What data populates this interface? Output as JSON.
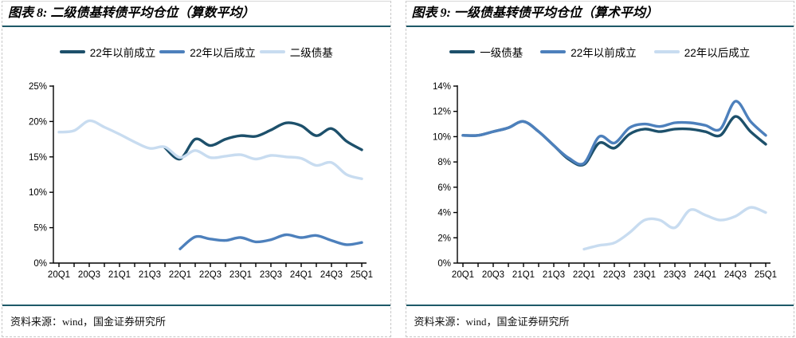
{
  "colors": {
    "separator": "#1E5968",
    "panel_border": "#c7c7c7",
    "axis": "#000000",
    "series_dark": "#1D506B",
    "series_medium": "#4D80BC",
    "series_light": "#C8DCF0"
  },
  "panels": [
    {
      "source": "资料来源：wind，国金证券研究所"
    },
    {
      "source": "资料来源：wind，国金证券研究所"
    }
  ],
  "chart_data": [
    {
      "type": "line",
      "title": "图表 8: 二级债基转债平均仓位（算数平均）",
      "categories": [
        "20Q1",
        "20Q2",
        "20Q3",
        "20Q4",
        "21Q1",
        "21Q2",
        "21Q3",
        "21Q4",
        "22Q1",
        "22Q2",
        "22Q3",
        "22Q4",
        "23Q1",
        "23Q2",
        "23Q3",
        "23Q4",
        "24Q1",
        "24Q2",
        "24Q3",
        "24Q4",
        "25Q1"
      ],
      "x_tick_labels": [
        "20Q1",
        "20Q3",
        "21Q1",
        "21Q3",
        "22Q1",
        "22Q3",
        "23Q1",
        "23Q3",
        "24Q1",
        "24Q3",
        "25Q1"
      ],
      "label_every": 2,
      "ylim": [
        0,
        25
      ],
      "ytick_step": 5,
      "ytick_suffix": "%",
      "grid": false,
      "legend_position": "top",
      "series": [
        {
          "name": "22年以前成立",
          "color": "#1D506B",
          "values": [
            null,
            null,
            null,
            null,
            null,
            null,
            null,
            16.3,
            14.7,
            17.5,
            16.6,
            17.5,
            18.0,
            17.9,
            18.8,
            19.8,
            19.4,
            18.0,
            19.0,
            17.2,
            16.0
          ]
        },
        {
          "name": "22年以后成立",
          "color": "#4D80BC",
          "values": [
            null,
            null,
            null,
            null,
            null,
            null,
            null,
            null,
            2.0,
            3.7,
            3.4,
            3.2,
            3.6,
            3.0,
            3.3,
            4.0,
            3.6,
            3.9,
            3.2,
            2.6,
            2.9
          ]
        },
        {
          "name": "二级债基",
          "color": "#C8DCF0",
          "values": [
            18.5,
            18.7,
            20.1,
            19.2,
            18.2,
            17.1,
            16.2,
            16.4,
            14.9,
            15.9,
            14.9,
            15.1,
            15.3,
            14.7,
            15.2,
            15.0,
            14.8,
            13.8,
            14.2,
            12.5,
            11.9
          ]
        }
      ]
    },
    {
      "type": "line",
      "title": "图表 9: 一级债基转债平均仓位（算术平均）",
      "categories": [
        "20Q1",
        "20Q2",
        "20Q3",
        "20Q4",
        "21Q1",
        "21Q2",
        "21Q3",
        "21Q4",
        "22Q1",
        "22Q2",
        "22Q3",
        "22Q4",
        "23Q1",
        "23Q2",
        "23Q3",
        "23Q4",
        "24Q1",
        "24Q2",
        "24Q3",
        "24Q4",
        "25Q1"
      ],
      "x_tick_labels": [
        "20Q1",
        "20Q3",
        "21Q1",
        "21Q3",
        "22Q1",
        "22Q3",
        "23Q1",
        "23Q3",
        "24Q1",
        "24Q3",
        "25Q1"
      ],
      "label_every": 2,
      "ylim": [
        0,
        14
      ],
      "ytick_step": 2,
      "ytick_suffix": "%",
      "grid": false,
      "legend_position": "top",
      "series": [
        {
          "name": "一级债基",
          "color": "#1D506B",
          "values": [
            10.1,
            10.1,
            10.4,
            10.7,
            11.2,
            10.4,
            9.3,
            8.2,
            7.8,
            9.5,
            9.1,
            10.2,
            10.6,
            10.4,
            10.6,
            10.6,
            10.4,
            10.1,
            11.6,
            10.4,
            9.4
          ]
        },
        {
          "name": "22年以前成立",
          "color": "#4D80BC",
          "values": [
            10.1,
            10.1,
            10.4,
            10.7,
            11.2,
            10.4,
            9.3,
            8.3,
            7.9,
            10.0,
            9.5,
            10.7,
            11.0,
            10.8,
            11.1,
            11.1,
            10.9,
            10.6,
            12.8,
            11.2,
            10.1
          ]
        },
        {
          "name": "22年以后成立",
          "color": "#C8DCF0",
          "values": [
            null,
            null,
            null,
            null,
            null,
            null,
            null,
            null,
            1.1,
            1.4,
            1.6,
            2.4,
            3.4,
            3.4,
            2.8,
            4.2,
            3.8,
            3.4,
            3.7,
            4.4,
            4.0
          ]
        }
      ]
    }
  ]
}
